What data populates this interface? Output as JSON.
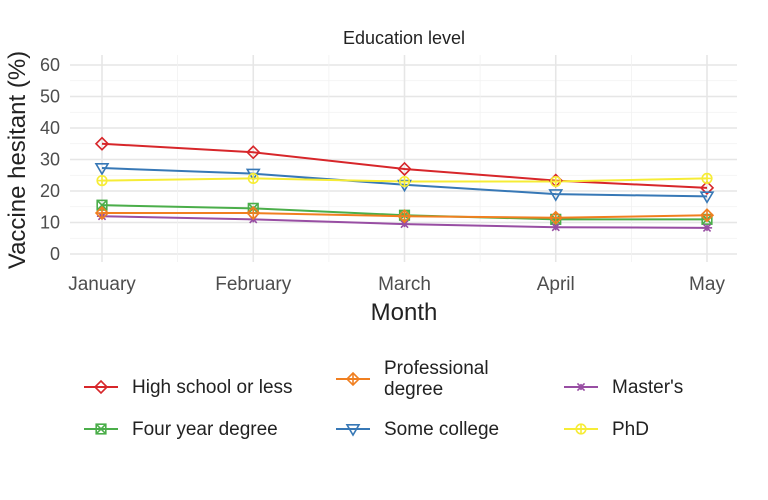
{
  "chart_data": {
    "type": "line",
    "title": "Education level",
    "xlabel": "Month",
    "ylabel": "Vaccine hesitant (%)",
    "categories": [
      "January",
      "February",
      "March",
      "April",
      "May"
    ],
    "ylim": [
      0,
      60
    ],
    "yticks": [
      0,
      10,
      20,
      30,
      40,
      50,
      60
    ],
    "grid": true,
    "legend_position": "bottom",
    "series": [
      {
        "name": "High school or less",
        "color": "#d7262a",
        "marker": "diamond",
        "values": [
          35.0,
          32.3,
          27.0,
          23.3,
          21.0
        ]
      },
      {
        "name": "Some college",
        "color": "#3778b6",
        "marker": "triangle-down",
        "values": [
          27.3,
          25.5,
          22.0,
          19.0,
          18.3
        ]
      },
      {
        "name": "Four year degree",
        "color": "#4bae4a",
        "marker": "square-cross",
        "values": [
          15.5,
          14.5,
          12.3,
          11.0,
          11.0
        ]
      },
      {
        "name": "Master's",
        "color": "#984ea3",
        "marker": "asterisk",
        "values": [
          12.0,
          11.0,
          9.5,
          8.5,
          8.3
        ]
      },
      {
        "name": "Professional\n degree",
        "color": "#f07f20",
        "marker": "diamond-plus",
        "values": [
          13.0,
          13.0,
          12.0,
          11.5,
          12.3
        ]
      },
      {
        "name": "PhD",
        "color": "#f6ec36",
        "marker": "circle-plus",
        "values": [
          23.3,
          24.0,
          23.0,
          23.0,
          24.0
        ]
      }
    ]
  }
}
